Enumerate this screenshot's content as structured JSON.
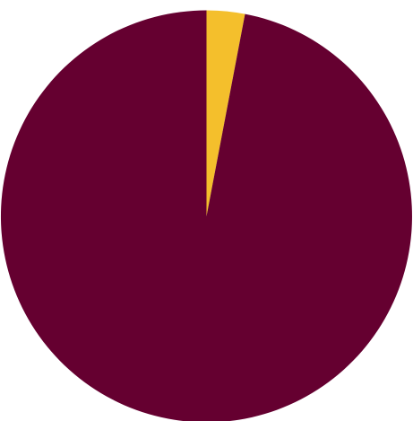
{
  "chart_data": {
    "type": "pie",
    "slices": [
      {
        "value": 3,
        "color": "#f4bf2c"
      },
      {
        "value": 97,
        "color": "#650030"
      }
    ],
    "start_angle_deg": 0,
    "direction": "clockwise",
    "legend": "none",
    "title": ""
  }
}
